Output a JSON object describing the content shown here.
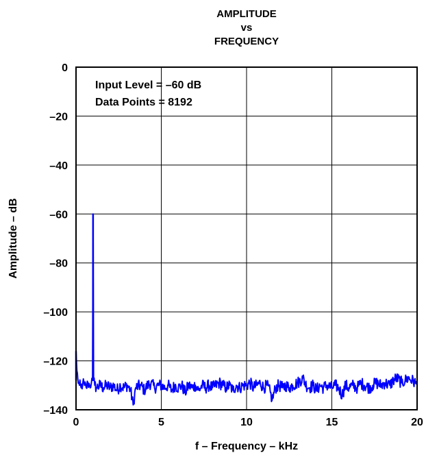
{
  "chart_data": {
    "type": "line",
    "title_lines": [
      "AMPLITUDE",
      "vs",
      "FREQUENCY"
    ],
    "xlabel": "f – Frequency – kHz",
    "ylabel": "Amplitude – dB",
    "xlim": [
      0,
      20
    ],
    "ylim": [
      -140,
      0
    ],
    "xticks": [
      0,
      5,
      10,
      15,
      20
    ],
    "yticks": [
      0,
      -20,
      -40,
      -60,
      -80,
      -100,
      -120,
      -140
    ],
    "xtick_labels": [
      "0",
      "5",
      "10",
      "15",
      "20"
    ],
    "ytick_labels": [
      "0",
      "–20",
      "–40",
      "–60",
      "–80",
      "–100",
      "–120",
      "–140"
    ],
    "grid": true,
    "annotations": [
      "Input Level = –60 dB",
      "Data Points = 8192"
    ],
    "series": [
      {
        "color": "#0000ff",
        "noise_floor_db": -130,
        "peaks": [
          {
            "x": 0.0,
            "y": -116
          },
          {
            "x": 1.0,
            "y": -60
          }
        ],
        "points": [
          [
            0.0,
            -116
          ],
          [
            0.05,
            -124
          ],
          [
            0.1,
            -127
          ],
          [
            0.15,
            -129
          ],
          [
            0.2,
            -130
          ],
          [
            0.3,
            -131
          ],
          [
            0.4,
            -129
          ],
          [
            0.5,
            -130
          ],
          [
            0.6,
            -131
          ],
          [
            0.7,
            -129
          ],
          [
            0.8,
            -130
          ],
          [
            0.9,
            -129
          ],
          [
            0.97,
            -128
          ],
          [
            1.0,
            -60
          ],
          [
            1.03,
            -128
          ],
          [
            1.1,
            -130
          ],
          [
            1.2,
            -131
          ],
          [
            1.4,
            -130
          ],
          [
            1.6,
            -131
          ],
          [
            1.8,
            -130
          ],
          [
            2.0,
            -131
          ],
          [
            2.2,
            -130
          ],
          [
            2.4,
            -132
          ],
          [
            2.6,
            -130
          ],
          [
            2.8,
            -131
          ],
          [
            3.0,
            -130
          ],
          [
            3.2,
            -132
          ],
          [
            3.35,
            -138
          ],
          [
            3.5,
            -131
          ],
          [
            3.8,
            -130
          ],
          [
            4.0,
            -132
          ],
          [
            4.2,
            -130
          ],
          [
            4.4,
            -129
          ],
          [
            4.6,
            -131
          ],
          [
            4.8,
            -130
          ],
          [
            5.0,
            -130
          ],
          [
            5.2,
            -131
          ],
          [
            5.4,
            -130
          ],
          [
            5.6,
            -132
          ],
          [
            5.8,
            -130
          ],
          [
            6.0,
            -131
          ],
          [
            6.2,
            -130
          ],
          [
            6.4,
            -133
          ],
          [
            6.6,
            -130
          ],
          [
            6.8,
            -131
          ],
          [
            7.0,
            -130
          ],
          [
            7.2,
            -132
          ],
          [
            7.4,
            -130
          ],
          [
            7.6,
            -131
          ],
          [
            7.8,
            -130
          ],
          [
            8.0,
            -131
          ],
          [
            8.2,
            -130
          ],
          [
            8.4,
            -129
          ],
          [
            8.6,
            -130
          ],
          [
            8.8,
            -131
          ],
          [
            9.0,
            -130
          ],
          [
            9.2,
            -132
          ],
          [
            9.4,
            -130
          ],
          [
            9.6,
            -131
          ],
          [
            9.8,
            -130
          ],
          [
            10.0,
            -130
          ],
          [
            10.2,
            -129
          ],
          [
            10.4,
            -131
          ],
          [
            10.6,
            -130
          ],
          [
            10.8,
            -129
          ],
          [
            11.0,
            -131
          ],
          [
            11.2,
            -130
          ],
          [
            11.4,
            -133
          ],
          [
            11.5,
            -136
          ],
          [
            11.7,
            -131
          ],
          [
            11.9,
            -130
          ],
          [
            12.1,
            -131
          ],
          [
            12.3,
            -130
          ],
          [
            12.5,
            -131
          ],
          [
            12.7,
            -130
          ],
          [
            13.0,
            -129
          ],
          [
            13.3,
            -127
          ],
          [
            13.5,
            -130
          ],
          [
            13.7,
            -131
          ],
          [
            13.9,
            -130
          ],
          [
            14.1,
            -132
          ],
          [
            14.3,
            -130
          ],
          [
            14.5,
            -131
          ],
          [
            14.7,
            -130
          ],
          [
            15.0,
            -131
          ],
          [
            15.2,
            -130
          ],
          [
            15.4,
            -131
          ],
          [
            15.6,
            -134
          ],
          [
            15.8,
            -130
          ],
          [
            16.0,
            -131
          ],
          [
            16.2,
            -130
          ],
          [
            16.5,
            -131
          ],
          [
            16.7,
            -129
          ],
          [
            16.9,
            -130
          ],
          [
            17.2,
            -131
          ],
          [
            17.4,
            -130
          ],
          [
            17.6,
            -129
          ],
          [
            17.9,
            -130
          ],
          [
            18.1,
            -129
          ],
          [
            18.4,
            -130
          ],
          [
            18.6,
            -128
          ],
          [
            18.8,
            -127
          ],
          [
            19.1,
            -129
          ],
          [
            19.3,
            -128
          ],
          [
            19.5,
            -127
          ],
          [
            19.7,
            -128
          ],
          [
            19.9,
            -129
          ],
          [
            20.0,
            -130
          ]
        ]
      }
    ]
  }
}
